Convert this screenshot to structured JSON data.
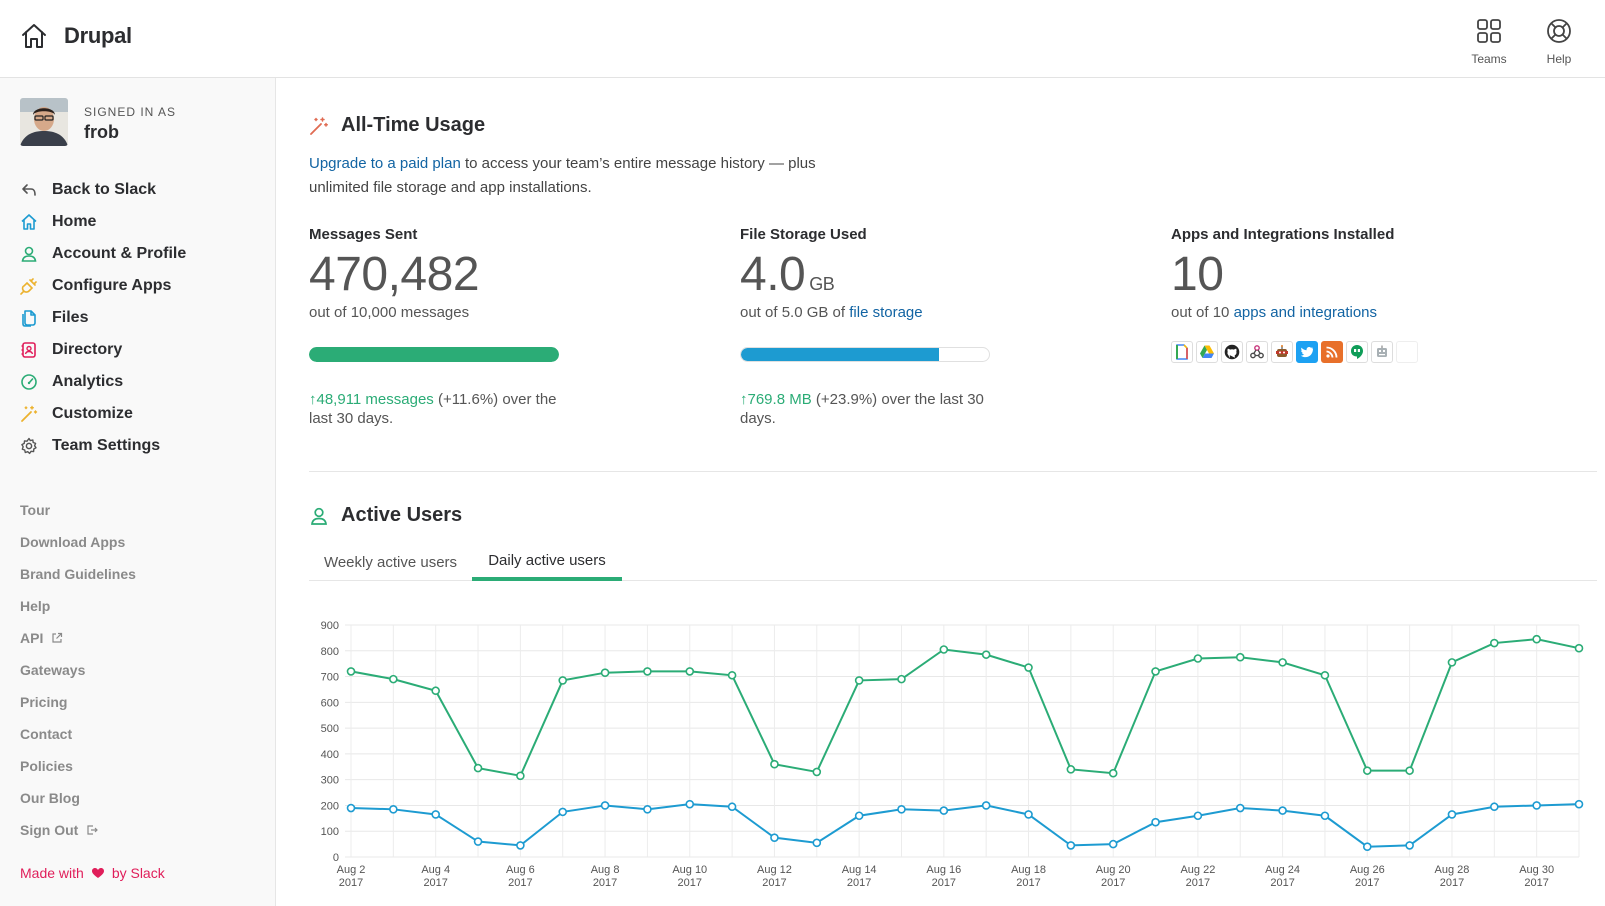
{
  "header": {
    "app_name": "Drupal",
    "teams_label": "Teams",
    "help_label": "Help"
  },
  "sidebar": {
    "signed_in_label": "SIGNED IN AS",
    "username": "frob",
    "nav": [
      {
        "label": "Back to Slack",
        "icon": "back-arrow-icon",
        "color": "#555555"
      },
      {
        "label": "Home",
        "icon": "home-icon",
        "color": "#1d9bd1"
      },
      {
        "label": "Account & Profile",
        "icon": "user-icon",
        "color": "#2bac76"
      },
      {
        "label": "Configure Apps",
        "icon": "plug-icon",
        "color": "#ecb22e"
      },
      {
        "label": "Files",
        "icon": "files-icon",
        "color": "#1d9bd1"
      },
      {
        "label": "Directory",
        "icon": "directory-icon",
        "color": "#e01e5a"
      },
      {
        "label": "Analytics",
        "icon": "gauge-icon",
        "color": "#2bac76"
      },
      {
        "label": "Customize",
        "icon": "magic-wand-icon",
        "color": "#ecb22e"
      },
      {
        "label": "Team Settings",
        "icon": "gear-icon",
        "color": "#555555"
      }
    ],
    "footer_links": [
      "Tour",
      "Download Apps",
      "Brand Guidelines",
      "Help",
      "API",
      "Gateways",
      "Pricing",
      "Contact",
      "Policies",
      "Our Blog",
      "Sign Out"
    ],
    "made_with_pre": "Made with",
    "made_with_post": "by Slack"
  },
  "usage": {
    "title": "All-Time Usage",
    "upgrade_link": "Upgrade to a paid plan",
    "desc_rest": " to access your team’s entire message history — plus unlimited file storage and app installations.",
    "messages": {
      "label": "Messages Sent",
      "value": "470,482",
      "sub": "out of 10,000 messages",
      "progress": 1.0,
      "delta_link": "↑48,911 messages",
      "delta_rest": " (+11.6%) over the last 30 days."
    },
    "storage": {
      "label": "File Storage Used",
      "value": "4.0",
      "unit": "GB",
      "sub_pre": "out of 5.0 GB of ",
      "sub_link": "file storage",
      "progress": 0.8,
      "delta_link": "↑769.8 MB",
      "delta_rest": " (+23.9%) over the last 30 days."
    },
    "apps": {
      "label": "Apps and Integrations Installed",
      "value": "10",
      "sub_pre": "out of 10 ",
      "sub_link": "apps and integrations",
      "icons": [
        "google-docs-icon",
        "google-drive-icon",
        "github-icon",
        "webhook-icon",
        "robot-icon",
        "twitter-icon",
        "rss-icon",
        "hangouts-icon",
        "bot-icon",
        "blank-icon"
      ]
    }
  },
  "active_users": {
    "title": "Active Users",
    "tabs": [
      "Weekly active users",
      "Daily active users"
    ],
    "active_tab": 1
  },
  "chart_data": {
    "type": "line",
    "ylim": [
      0,
      900
    ],
    "yticks": [
      0,
      100,
      200,
      300,
      400,
      500,
      600,
      700,
      800,
      900
    ],
    "x": [
      "Aug 2",
      "Aug 3",
      "Aug 4",
      "Aug 5",
      "Aug 6",
      "Aug 7",
      "Aug 8",
      "Aug 9",
      "Aug 10",
      "Aug 11",
      "Aug 12",
      "Aug 13",
      "Aug 14",
      "Aug 15",
      "Aug 16",
      "Aug 17",
      "Aug 18",
      "Aug 19",
      "Aug 20",
      "Aug 21",
      "Aug 22",
      "Aug 23",
      "Aug 24",
      "Aug 25",
      "Aug 26",
      "Aug 27",
      "Aug 28",
      "Aug 29",
      "Aug 30",
      "Aug 31"
    ],
    "tick_labels": [
      {
        "index": 0,
        "line1": "Aug 2",
        "line2": "2017"
      },
      {
        "index": 2,
        "line1": "Aug 4",
        "line2": "2017"
      },
      {
        "index": 4,
        "line1": "Aug 6",
        "line2": "2017"
      },
      {
        "index": 6,
        "line1": "Aug 8",
        "line2": "2017"
      },
      {
        "index": 8,
        "line1": "Aug 10",
        "line2": "2017"
      },
      {
        "index": 10,
        "line1": "Aug 12",
        "line2": "2017"
      },
      {
        "index": 12,
        "line1": "Aug 14",
        "line2": "2017"
      },
      {
        "index": 14,
        "line1": "Aug 16",
        "line2": "2017"
      },
      {
        "index": 16,
        "line1": "Aug 18",
        "line2": "2017"
      },
      {
        "index": 18,
        "line1": "Aug 20",
        "line2": "2017"
      },
      {
        "index": 20,
        "line1": "Aug 22",
        "line2": "2017"
      },
      {
        "index": 22,
        "line1": "Aug 24",
        "line2": "2017"
      },
      {
        "index": 24,
        "line1": "Aug 26",
        "line2": "2017"
      },
      {
        "index": 26,
        "line1": "Aug 28",
        "line2": "2017"
      },
      {
        "index": 28,
        "line1": "Aug 30",
        "line2": "2017"
      }
    ],
    "series": [
      {
        "color": "#2bac76",
        "values": [
          720,
          690,
          645,
          345,
          315,
          685,
          715,
          720,
          720,
          705,
          360,
          330,
          685,
          690,
          805,
          785,
          735,
          340,
          325,
          720,
          770,
          775,
          755,
          705,
          335,
          335,
          755,
          830,
          845,
          810
        ]
      },
      {
        "color": "#1d9bd1",
        "values": [
          190,
          185,
          165,
          60,
          45,
          175,
          200,
          185,
          205,
          195,
          75,
          55,
          160,
          185,
          180,
          200,
          165,
          45,
          50,
          135,
          160,
          190,
          180,
          160,
          40,
          45,
          165,
          195,
          200,
          205
        ]
      }
    ],
    "grid": true
  }
}
